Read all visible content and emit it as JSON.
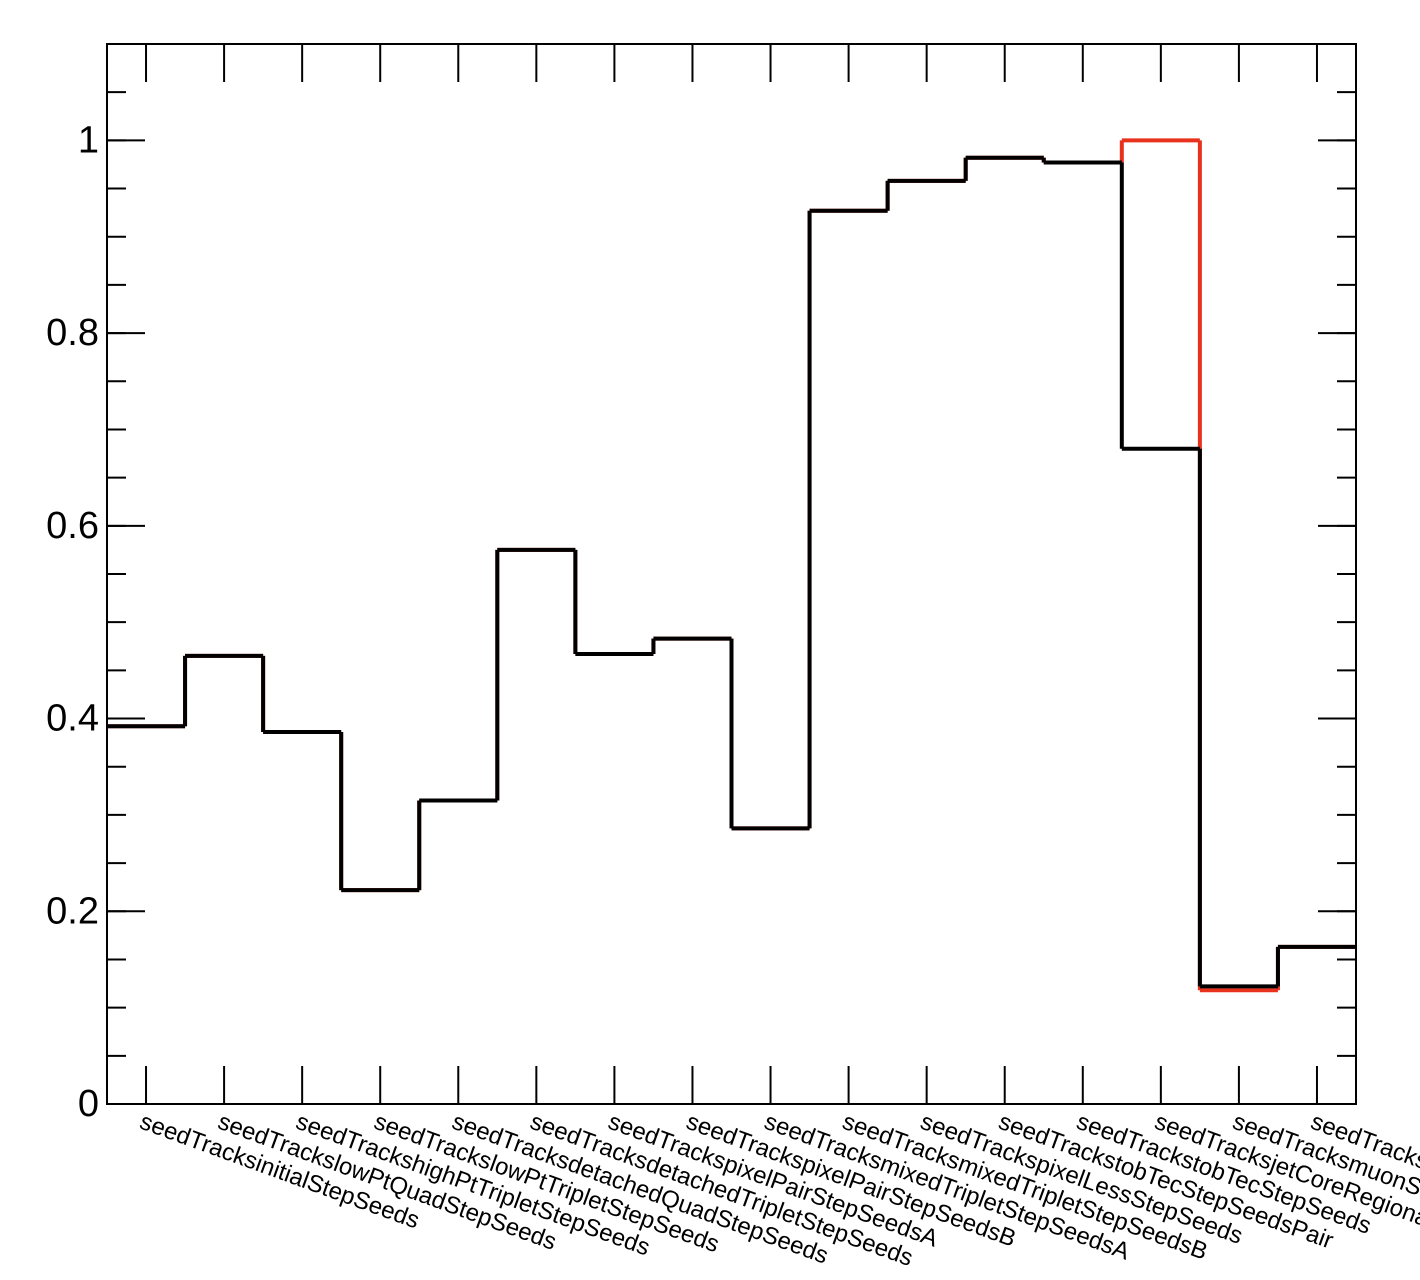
{
  "chart_data": {
    "type": "step",
    "categories": [
      "seedTracksinitialStepSeeds",
      "seedTrackslowPtQuadStepSeeds",
      "seedTrackshighPtTripletStepSeeds",
      "seedTrackslowPtTripletStepSeeds",
      "seedTracksdetachedQuadStepSeeds",
      "seedTracksdetachedTripletStepSeeds",
      "seedTrackspixelPairStepSeedsA",
      "seedTrackspixelPairStepSeedsB",
      "seedTracksmixedTripletStepSeedsA",
      "seedTracksmixedTripletStepSeedsB",
      "seedTrackspixelLessStepSeeds",
      "seedTrackstobTecStepSeedsPair",
      "seedTrackstobTecStepSeeds",
      "seedTracksjetCoreRegionalStepSeeds",
      "seedTracksmuonSeededSeedsInOut",
      "seedTracksmuonSeededSeedsOutIn"
    ],
    "series": [
      {
        "color": "#e8321e",
        "values": [
          0.392,
          0.465,
          0.386,
          0.222,
          0.315,
          0.575,
          0.467,
          0.483,
          0.286,
          0.927,
          0.958,
          0.982,
          0.977,
          1.0,
          0.118,
          0.163
        ]
      },
      {
        "color": "#000000",
        "values": [
          0.392,
          0.465,
          0.386,
          0.222,
          0.315,
          0.575,
          0.467,
          0.483,
          0.286,
          0.927,
          0.958,
          0.982,
          0.977,
          0.68,
          0.122,
          0.163
        ]
      }
    ],
    "ylim": [
      0,
      1.1
    ],
    "yticks": [
      0,
      0.2,
      0.4,
      0.6,
      0.8,
      1
    ]
  }
}
